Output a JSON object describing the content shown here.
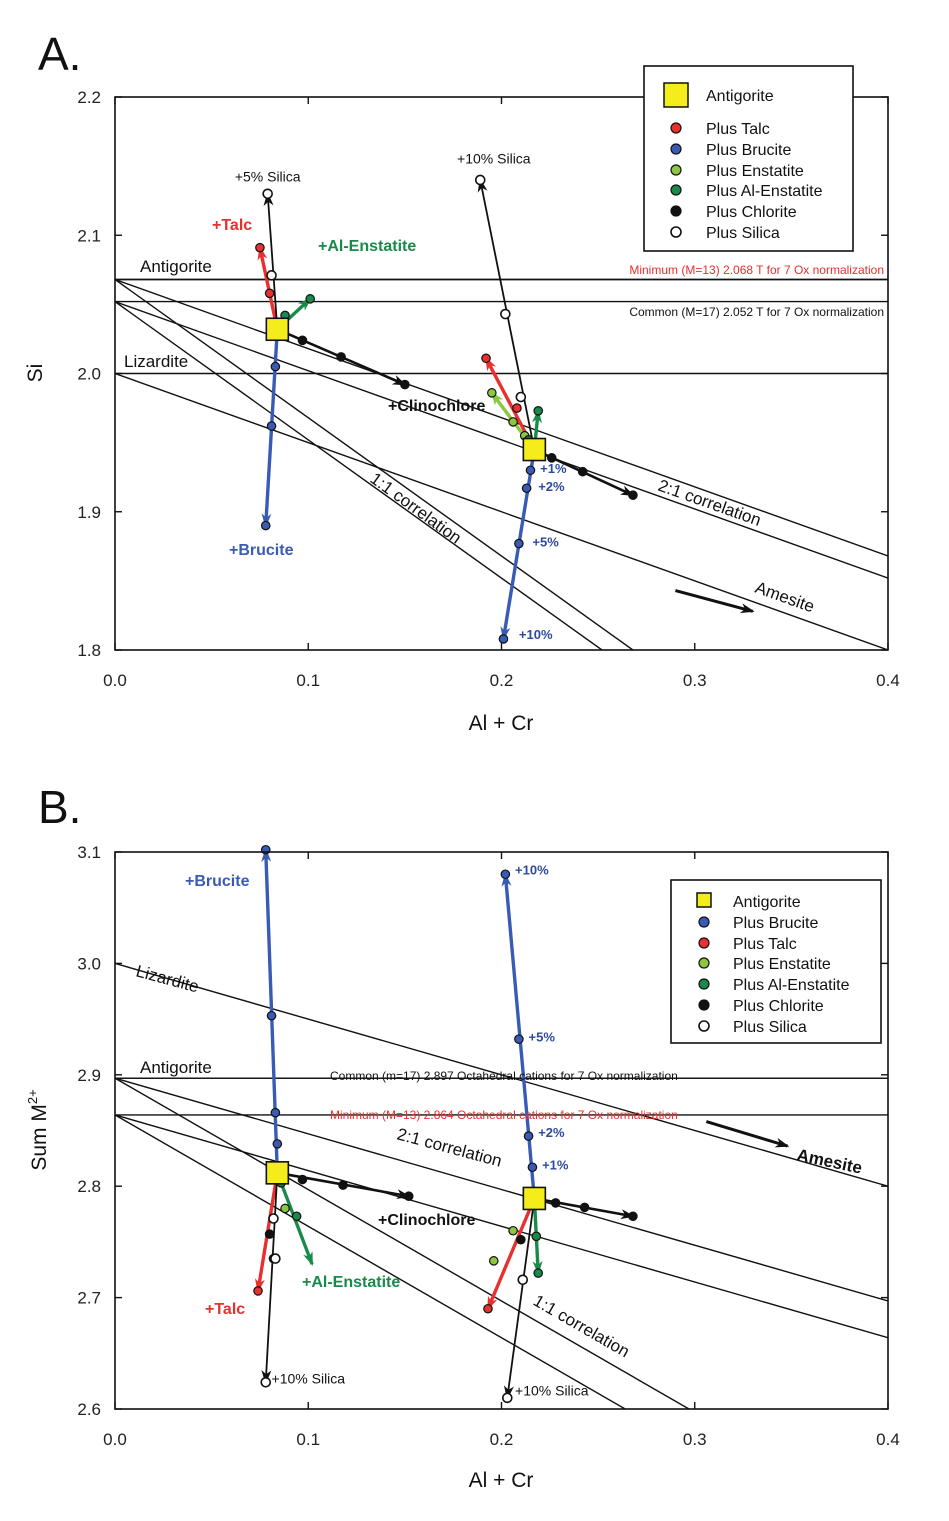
{
  "colors": {
    "talc": "#e8302e",
    "brucite": "#3a5bb5",
    "enstatite": "#8dc63f",
    "al_enstatite": "#1a8a4a",
    "chlorite": "#111111",
    "silica": "#ffffff",
    "antigorite": "#f5ec1c",
    "minimum_line_label": "#e8302e",
    "common_line_label": "#111111"
  },
  "chart_data": [
    {
      "panel": "A.",
      "type": "scatter",
      "xlabel": "Al + Cr",
      "ylabel": "Si",
      "xlim": [
        0.0,
        0.4
      ],
      "ylim": [
        1.8,
        2.2
      ],
      "xticks": [
        "0.0",
        "0.1",
        "0.2",
        "0.3",
        "0.4"
      ],
      "yticks": [
        "1.8",
        "1.9",
        "2.0",
        "2.1",
        "2.2"
      ],
      "legend_position": "top-right",
      "legend": [
        "Antigorite",
        "Plus Talc",
        "Plus Brucite",
        "Plus Enstatite",
        "Plus Al-Enstatite",
        "Plus Chlorite",
        "Plus Silica"
      ],
      "reference_lines": [
        {
          "label": "Antigorite",
          "points": [
            [
              0.0,
              2.068
            ],
            [
              0.4,
              2.068
            ]
          ]
        },
        {
          "label": "Minimum (M=13) 2.068 T for 7 Ox normalization",
          "points": [
            [
              0.0,
              2.068
            ],
            [
              0.4,
              2.068
            ]
          ]
        },
        {
          "label": "Common (M=17) 2.052 T for 7 Ox normalization",
          "points": [
            [
              0.0,
              2.052
            ],
            [
              0.4,
              2.052
            ]
          ]
        },
        {
          "label": "Lizardite",
          "points": [
            [
              0.0,
              2.0
            ],
            [
              0.4,
              2.0
            ]
          ]
        },
        {
          "label": "2:1 correlation",
          "points": [
            [
              0.0,
              2.068
            ],
            [
              0.4,
              1.868
            ]
          ]
        },
        {
          "label": "",
          "points": [
            [
              0.0,
              2.052
            ],
            [
              0.4,
              1.852
            ]
          ]
        },
        {
          "label": "Amesite",
          "points": [
            [
              0.0,
              2.0
            ],
            [
              0.4,
              1.8
            ]
          ]
        },
        {
          "label": "1:1 correlation",
          "points": [
            [
              0.0,
              2.068
            ],
            [
              0.268,
              1.8
            ]
          ]
        },
        {
          "label": "",
          "points": [
            [
              0.0,
              2.052
            ],
            [
              0.252,
              1.8
            ]
          ]
        }
      ],
      "amesite_arrow": [
        [
          0.29,
          1.843
        ],
        [
          0.33,
          1.828
        ]
      ],
      "antigorite": [
        [
          0.084,
          2.032
        ],
        [
          0.217,
          1.945
        ]
      ],
      "series": [
        {
          "name": "Plus Talc",
          "color_key": "talc",
          "label": "+Talc",
          "paths": [
            [
              [
                0.084,
                2.032
              ],
              [
                0.075,
                2.091
              ]
            ],
            [
              [
                0.217,
                1.945
              ],
              [
                0.192,
                2.011
              ]
            ]
          ],
          "points": [
            [
              0.075,
              2.091
            ],
            [
              0.192,
              2.011
            ],
            [
              0.08,
              2.058
            ],
            [
              0.208,
              1.975
            ]
          ]
        },
        {
          "name": "Plus Brucite",
          "color_key": "brucite",
          "label": "+Brucite",
          "paths": [
            [
              [
                0.084,
                2.032
              ],
              [
                0.078,
                1.89
              ]
            ],
            [
              [
                0.217,
                1.945
              ],
              [
                0.201,
                1.808
              ]
            ]
          ],
          "points": [
            [
              0.078,
              1.89
            ],
            [
              0.083,
              2.005
            ],
            [
              0.081,
              1.962
            ],
            [
              0.201,
              1.808
            ],
            [
              0.215,
              1.93
            ],
            [
              0.213,
              1.917
            ],
            [
              0.209,
              1.877
            ]
          ]
        },
        {
          "name": "Plus Enstatite",
          "color_key": "enstatite",
          "label": "",
          "paths": [
            [
              [
                0.217,
                1.945
              ],
              [
                0.195,
                1.986
              ]
            ]
          ],
          "points": [
            [
              0.195,
              1.986
            ],
            [
              0.206,
              1.965
            ],
            [
              0.212,
              1.955
            ]
          ]
        },
        {
          "name": "Plus Al-Enstatite",
          "color_key": "al_enstatite",
          "label": "+Al-Enstatite",
          "paths": [
            [
              [
                0.084,
                2.032
              ],
              [
                0.101,
                2.054
              ]
            ],
            [
              [
                0.217,
                1.945
              ],
              [
                0.219,
                1.973
              ]
            ]
          ],
          "points": [
            [
              0.101,
              2.054
            ],
            [
              0.088,
              2.042
            ],
            [
              0.219,
              1.973
            ],
            [
              0.214,
              1.952
            ]
          ]
        },
        {
          "name": "Plus Chlorite",
          "color_key": "chlorite",
          "label": "+Clinochlore",
          "paths": [
            [
              [
                0.084,
                2.032
              ],
              [
                0.15,
                1.992
              ]
            ],
            [
              [
                0.217,
                1.945
              ],
              [
                0.268,
                1.912
              ]
            ]
          ],
          "points": [
            [
              0.15,
              1.992
            ],
            [
              0.097,
              2.024
            ],
            [
              0.117,
              2.012
            ],
            [
              0.268,
              1.912
            ],
            [
              0.226,
              1.939
            ],
            [
              0.242,
              1.929
            ]
          ]
        },
        {
          "name": "Plus Silica",
          "color_key": "silica",
          "label": "",
          "paths": [
            [
              [
                0.084,
                2.032
              ],
              [
                0.079,
                2.13
              ]
            ],
            [
              [
                0.217,
                1.945
              ],
              [
                0.189,
                2.14
              ]
            ]
          ],
          "points": [
            [
              0.079,
              2.13
            ],
            [
              0.081,
              2.071
            ],
            [
              0.189,
              2.14
            ],
            [
              0.202,
              2.043
            ],
            [
              0.21,
              1.983
            ]
          ]
        }
      ],
      "annotations": [
        {
          "text": "+5% Silica",
          "x": 0.062,
          "y": 2.139
        },
        {
          "text": "+10% Silica",
          "x": 0.177,
          "y": 2.152
        },
        {
          "text": "+1%",
          "x": 0.22,
          "y": 1.928
        },
        {
          "text": "+2%",
          "x": 0.219,
          "y": 1.915
        },
        {
          "text": "+5%",
          "x": 0.216,
          "y": 1.875
        },
        {
          "text": "+10%",
          "x": 0.209,
          "y": 1.808
        }
      ]
    },
    {
      "panel": "B.",
      "type": "scatter",
      "xlabel": "Al + Cr",
      "ylabel": "Sum M2+",
      "xlim": [
        0.0,
        0.4
      ],
      "ylim": [
        2.6,
        3.1
      ],
      "xticks": [
        "0.0",
        "0.1",
        "0.2",
        "0.3",
        "0.4"
      ],
      "yticks": [
        "2.6",
        "2.7",
        "2.8",
        "2.9",
        "3.0",
        "3.1"
      ],
      "legend_position": "right",
      "legend": [
        "Antigorite",
        "Plus Brucite",
        "Plus Talc",
        "Plus Enstatite",
        "Plus Al-Enstatite",
        "Plus Chlorite",
        "Plus Silica"
      ],
      "reference_lines": [
        {
          "label": "Lizardite",
          "points": [
            [
              0.0,
              3.0
            ],
            [
              0.4,
              2.8
            ]
          ]
        },
        {
          "label": "Antigorite",
          "points": [
            [
              0.0,
              2.897
            ],
            [
              0.4,
              2.897
            ]
          ]
        },
        {
          "label": "Common (m=17) 2.897 Octahedral cations for 7 Ox normalization",
          "points": [
            [
              0.0,
              2.897
            ],
            [
              0.4,
              2.897
            ]
          ]
        },
        {
          "label": "Minimum (M=13) 2.864 Octahedral cations for 7 Ox normalization",
          "points": [
            [
              0.0,
              2.864
            ],
            [
              0.4,
              2.864
            ]
          ]
        },
        {
          "label": "2:1 correlation",
          "points": [
            [
              0.0,
              2.897
            ],
            [
              0.4,
              2.697
            ]
          ]
        },
        {
          "label": "",
          "points": [
            [
              0.0,
              2.864
            ],
            [
              0.4,
              2.664
            ]
          ]
        },
        {
          "label": "1:1 correlation",
          "points": [
            [
              0.0,
              2.897
            ],
            [
              0.297,
              2.6
            ]
          ]
        },
        {
          "label": "",
          "points": [
            [
              0.0,
              2.864
            ],
            [
              0.264,
              2.6
            ]
          ]
        }
      ],
      "amesite_arrow": [
        [
          0.306,
          2.858
        ],
        [
          0.348,
          2.836
        ]
      ],
      "antigorite": [
        [
          0.084,
          2.812
        ],
        [
          0.217,
          2.789
        ]
      ],
      "series": [
        {
          "name": "Plus Brucite",
          "color_key": "brucite",
          "label": "+Brucite",
          "paths": [
            [
              [
                0.084,
                2.812
              ],
              [
                0.078,
                3.102
              ]
            ],
            [
              [
                0.217,
                2.789
              ],
              [
                0.202,
                3.08
              ]
            ]
          ],
          "points": [
            [
              0.078,
              3.102
            ],
            [
              0.081,
              2.953
            ],
            [
              0.083,
              2.866
            ],
            [
              0.084,
              2.838
            ],
            [
              0.202,
              3.08
            ],
            [
              0.209,
              2.932
            ],
            [
              0.214,
              2.845
            ],
            [
              0.216,
              2.817
            ]
          ]
        },
        {
          "name": "Plus Talc",
          "color_key": "talc",
          "label": "+Talc",
          "paths": [
            [
              [
                0.084,
                2.812
              ],
              [
                0.074,
                2.706
              ]
            ],
            [
              [
                0.217,
                2.789
              ],
              [
                0.193,
                2.69
              ]
            ]
          ],
          "points": [
            [
              0.074,
              2.706
            ],
            [
              0.193,
              2.69
            ]
          ]
        },
        {
          "name": "Plus Enstatite",
          "color_key": "enstatite",
          "label": "",
          "paths": [],
          "points": [
            [
              0.196,
              2.733
            ],
            [
              0.206,
              2.76
            ],
            [
              0.088,
              2.78
            ]
          ]
        },
        {
          "name": "Plus Al-Enstatite",
          "color_key": "al_enstatite",
          "label": "+Al-Enstatite",
          "paths": [
            [
              [
                0.084,
                2.812
              ],
              [
                0.102,
                2.73
              ]
            ],
            [
              [
                0.217,
                2.789
              ],
              [
                0.219,
                2.722
              ]
            ]
          ],
          "points": [
            [
              0.219,
              2.722
            ],
            [
              0.094,
              2.773
            ],
            [
              0.086,
              2.803
            ],
            [
              0.218,
              2.755
            ]
          ]
        },
        {
          "name": "Plus Chlorite",
          "color_key": "chlorite",
          "label": "+Clinochlore",
          "paths": [
            [
              [
                0.084,
                2.812
              ],
              [
                0.152,
                2.791
              ]
            ],
            [
              [
                0.217,
                2.789
              ],
              [
                0.268,
                2.773
              ]
            ]
          ],
          "points": [
            [
              0.152,
              2.791
            ],
            [
              0.097,
              2.806
            ],
            [
              0.118,
              2.801
            ],
            [
              0.268,
              2.773
            ],
            [
              0.228,
              2.785
            ],
            [
              0.243,
              2.781
            ],
            [
              0.08,
              2.757
            ],
            [
              0.21,
              2.752
            ],
            [
              0.082,
              2.735
            ]
          ]
        },
        {
          "name": "Plus Silica",
          "color_key": "silica",
          "label": "",
          "paths": [
            [
              [
                0.084,
                2.812
              ],
              [
                0.078,
                2.624
              ]
            ],
            [
              [
                0.217,
                2.789
              ],
              [
                0.203,
                2.61
              ]
            ]
          ],
          "points": [
            [
              0.078,
              2.624
            ],
            [
              0.082,
              2.771
            ],
            [
              0.083,
              2.735
            ],
            [
              0.203,
              2.61
            ],
            [
              0.211,
              2.716
            ]
          ]
        }
      ],
      "annotations": [
        {
          "text": "+10% Silica",
          "x": 0.081,
          "y": 2.623
        },
        {
          "text": "+10% Silica",
          "x": 0.207,
          "y": 2.612
        },
        {
          "text": "+10%",
          "x": 0.207,
          "y": 3.08
        },
        {
          "text": "+5%",
          "x": 0.214,
          "y": 2.93
        },
        {
          "text": "+2%",
          "x": 0.219,
          "y": 2.844
        },
        {
          "text": "+1%",
          "x": 0.221,
          "y": 2.815
        }
      ]
    }
  ]
}
